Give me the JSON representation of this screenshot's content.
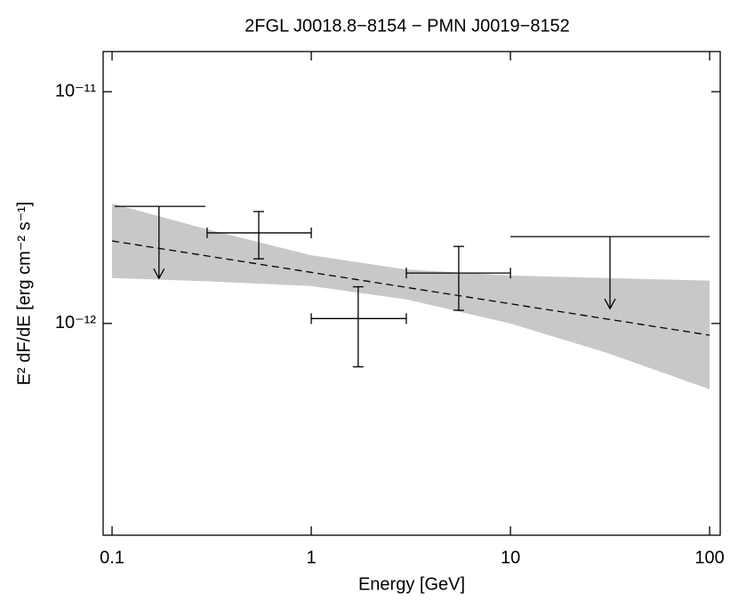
{
  "chart_data": {
    "type": "errorbar",
    "title": "2FGL J0018.8−8154 − PMN J0019−8152",
    "xlabel": "Energy [GeV]",
    "ylabel": "E² dF/dE [erg cm⁻² s⁻¹]",
    "log_x": true,
    "log_y": true,
    "xlim": [
      0.0902,
      113
    ],
    "ylim": [
      1.22e-13,
      1.49e-11
    ],
    "xticks": [
      0.1,
      1,
      10,
      100
    ],
    "yticks": [
      {
        "value": 1e-12,
        "label": "10⁻¹²"
      },
      {
        "value": 1e-11,
        "label": "10⁻¹¹"
      }
    ],
    "color": "#000000",
    "band": {
      "color": "#c8c8c8",
      "x": [
        0.1,
        0.3,
        1,
        3,
        10,
        30,
        100
      ],
      "upper": [
        3.29e-12,
        2.55e-12,
        1.97e-12,
        1.71e-12,
        1.61e-12,
        1.57e-12,
        1.53e-12
      ],
      "lower": [
        1.57e-12,
        1.52e-12,
        1.45e-12,
        1.27e-12,
        1e-12,
        7.5e-13,
        5.2e-13
      ]
    },
    "model": {
      "x": [
        0.1,
        100
      ],
      "values": [
        2.27e-12,
        8.9e-13
      ],
      "dashed": true
    },
    "points": {
      "x": [
        0.172,
        0.545,
        1.72,
        5.5,
        31.6
      ],
      "x_low": [
        0.103,
        0.3,
        1.0,
        3.0,
        10
      ],
      "x_high": [
        0.294,
        1.0,
        3.0,
        10,
        100
      ],
      "values": [
        3.2e-12,
        2.46e-12,
        1.05e-12,
        1.65e-12,
        2.37e-12
      ],
      "y_low": [
        null,
        1.9e-12,
        6.5e-13,
        1.14e-12,
        null
      ],
      "y_high": [
        null,
        3.04e-12,
        1.44e-12,
        2.15e-12,
        null
      ],
      "upper_limit": [
        true,
        false,
        false,
        false,
        true
      ]
    }
  }
}
